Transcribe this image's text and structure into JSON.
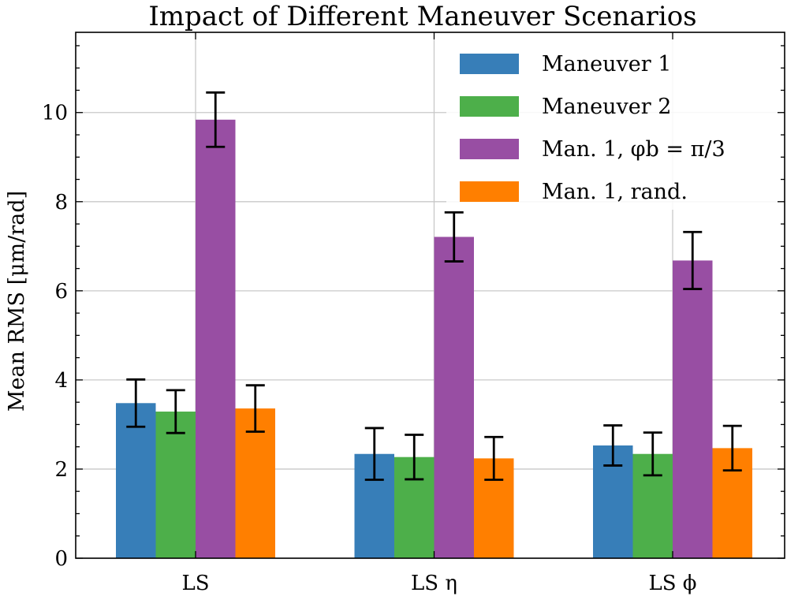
{
  "chart_data": {
    "type": "bar",
    "title": "Impact of Different Maneuver Scenarios",
    "xlabel": "",
    "ylabel": "Mean RMS [μm/rad]",
    "categories": [
      "LS",
      "LS η",
      "LS ϕ"
    ],
    "ylim": [
      0,
      11.8
    ],
    "yticks": [
      0,
      2,
      4,
      6,
      8,
      10
    ],
    "grid": true,
    "legend_position": "top-right",
    "series": [
      {
        "name": "Maneuver 1",
        "color": "#377eb8",
        "values": [
          3.48,
          2.34,
          2.53
        ],
        "errors": [
          0.53,
          0.58,
          0.45
        ]
      },
      {
        "name": "Maneuver 2",
        "color": "#4daf4a",
        "values": [
          3.29,
          2.27,
          2.34
        ],
        "errors": [
          0.48,
          0.5,
          0.48
        ]
      },
      {
        "name": "Man. 1, φb = π/3",
        "color": "#984ea3",
        "values": [
          9.84,
          7.21,
          6.68
        ],
        "errors": [
          0.61,
          0.55,
          0.64
        ]
      },
      {
        "name": "Man. 1, rand.",
        "color": "#ff7f00",
        "values": [
          3.36,
          2.24,
          2.47
        ],
        "errors": [
          0.52,
          0.48,
          0.5
        ]
      }
    ]
  }
}
